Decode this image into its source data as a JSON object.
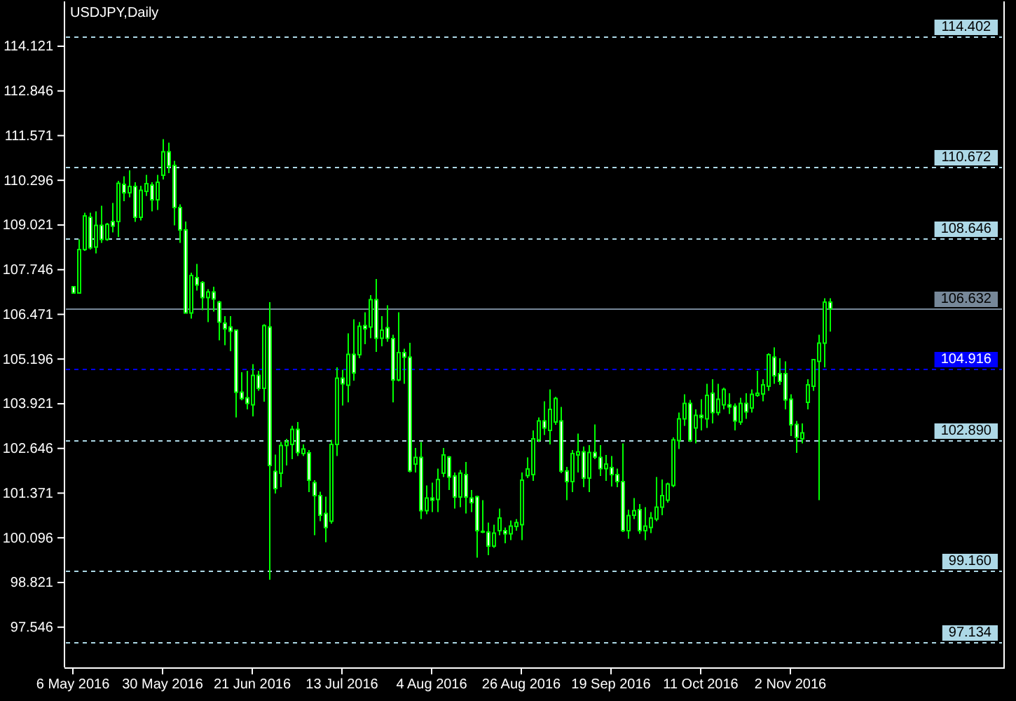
{
  "chart_data": {
    "type": "candlestick",
    "title": "USDJPY,Daily",
    "categories": [
      "6 May 2016",
      null,
      null,
      null,
      null,
      null,
      null,
      null,
      null,
      null,
      null,
      null,
      null,
      null,
      null,
      null,
      "30 May 2016",
      null,
      null,
      null,
      null,
      null,
      null,
      null,
      null,
      null,
      null,
      null,
      null,
      null,
      null,
      null,
      "21 Jun 2016",
      null,
      null,
      null,
      null,
      null,
      null,
      null,
      null,
      null,
      null,
      null,
      null,
      null,
      null,
      null,
      "13 Jul 2016",
      null,
      null,
      null,
      null,
      null,
      null,
      null,
      null,
      null,
      null,
      null,
      null,
      null,
      null,
      null,
      "4 Aug 2016",
      null,
      null,
      null,
      null,
      null,
      null,
      null,
      null,
      null,
      null,
      null,
      null,
      null,
      null,
      null,
      "26 Aug 2016",
      null,
      null,
      null,
      null,
      null,
      null,
      null,
      null,
      null,
      null,
      null,
      null,
      null,
      null,
      null,
      "19 Sep 2016",
      null,
      null,
      null,
      null,
      null,
      null,
      null,
      null,
      null,
      null,
      null,
      null,
      null,
      null,
      null,
      "11 Oct 2016",
      null,
      null,
      null,
      null,
      null,
      null,
      null,
      null,
      null,
      null,
      null,
      null,
      null,
      null,
      null,
      "2 Nov 2016",
      null,
      null,
      null,
      null,
      null,
      null,
      null
    ],
    "ohlc": [
      [
        107.26,
        107.26,
        107.08,
        107.08
      ],
      [
        107.08,
        108.61,
        107.08,
        108.32
      ],
      [
        108.32,
        109.37,
        108.28,
        109.28
      ],
      [
        109.24,
        109.37,
        108.32,
        108.37
      ],
      [
        108.39,
        109.41,
        108.21,
        109.01
      ],
      [
        109.01,
        109.57,
        108.51,
        108.61
      ],
      [
        108.61,
        109.08,
        108.57,
        109.04
      ],
      [
        109.12,
        109.65,
        108.81,
        108.99
      ],
      [
        109.12,
        110.28,
        108.68,
        110.21
      ],
      [
        110.18,
        110.41,
        109.7,
        109.94
      ],
      [
        109.94,
        110.58,
        109.81,
        110.12
      ],
      [
        110.12,
        110.24,
        109.11,
        109.24
      ],
      [
        109.24,
        110.14,
        109.15,
        110.01
      ],
      [
        109.98,
        110.45,
        109.85,
        110.2
      ],
      [
        110.16,
        110.24,
        109.41,
        109.74
      ],
      [
        109.74,
        110.45,
        109.45,
        110.24
      ],
      [
        110.44,
        111.47,
        110.32,
        111.11
      ],
      [
        111.11,
        111.37,
        110.5,
        110.7
      ],
      [
        110.72,
        110.85,
        109.01,
        109.52
      ],
      [
        109.52,
        109.61,
        108.51,
        108.88
      ],
      [
        108.88,
        109.12,
        106.51,
        106.51
      ],
      [
        106.51,
        107.66,
        106.35,
        107.58
      ],
      [
        107.52,
        107.91,
        107.15,
        107.31
      ],
      [
        107.38,
        107.42,
        106.59,
        106.95
      ],
      [
        106.95,
        107.19,
        106.25,
        107.11
      ],
      [
        107.11,
        107.26,
        106.55,
        106.91
      ],
      [
        106.82,
        106.86,
        105.73,
        106.25
      ],
      [
        106.22,
        106.42,
        105.59,
        106.06
      ],
      [
        106.11,
        106.42,
        105.42,
        105.99
      ],
      [
        106.02,
        106.02,
        103.53,
        104.25
      ],
      [
        104.25,
        104.82,
        104.02,
        104.07
      ],
      [
        104.09,
        104.86,
        103.76,
        103.93
      ],
      [
        103.89,
        105.05,
        103.56,
        104.73
      ],
      [
        104.73,
        104.86,
        104.29,
        104.36
      ],
      [
        104.36,
        106.19,
        103.98,
        106.15
      ],
      [
        106.11,
        106.82,
        98.9,
        102.16
      ],
      [
        101.99,
        102.47,
        101.36,
        101.5
      ],
      [
        101.94,
        102.83,
        101.54,
        102.73
      ],
      [
        102.73,
        102.92,
        102.16,
        102.83
      ],
      [
        102.76,
        103.29,
        102.34,
        103.19
      ],
      [
        103.19,
        103.4,
        102.43,
        102.53
      ],
      [
        102.5,
        102.76,
        102.43,
        102.63
      ],
      [
        102.52,
        102.6,
        101.4,
        101.74
      ],
      [
        101.67,
        101.74,
        100.17,
        101.3
      ],
      [
        101.3,
        101.41,
        100.57,
        100.74
      ],
      [
        100.79,
        101.27,
        99.97,
        100.39
      ],
      [
        100.57,
        102.89,
        100.5,
        102.76
      ],
      [
        102.76,
        104.96,
        102.43,
        104.65
      ],
      [
        104.65,
        104.89,
        103.87,
        104.49
      ],
      [
        104.45,
        105.93,
        103.96,
        105.33
      ],
      [
        105.33,
        106.33,
        104.58,
        104.8
      ],
      [
        105.32,
        106.25,
        105.22,
        106.13
      ],
      [
        106.15,
        106.53,
        105.62,
        106.06
      ],
      [
        106.11,
        107.02,
        105.79,
        106.89
      ],
      [
        106.89,
        107.48,
        105.4,
        105.79
      ],
      [
        105.79,
        106.42,
        105.56,
        106.02
      ],
      [
        106.09,
        106.73,
        105.69,
        105.79
      ],
      [
        105.78,
        105.89,
        103.96,
        104.6
      ],
      [
        104.6,
        106.53,
        104.56,
        105.38
      ],
      [
        105.38,
        105.49,
        104.49,
        105.25
      ],
      [
        105.25,
        105.66,
        101.96,
        102.0
      ],
      [
        102.2,
        102.66,
        101.96,
        102.39
      ],
      [
        102.39,
        102.83,
        100.63,
        100.87
      ],
      [
        100.87,
        101.59,
        100.77,
        101.23
      ],
      [
        101.23,
        101.67,
        100.83,
        101.17
      ],
      [
        101.19,
        102.07,
        100.83,
        101.76
      ],
      [
        101.94,
        102.66,
        101.83,
        102.46
      ],
      [
        102.4,
        102.43,
        101.46,
        101.83
      ],
      [
        101.86,
        101.96,
        100.93,
        101.26
      ],
      [
        101.26,
        102.03,
        100.97,
        101.94
      ],
      [
        101.9,
        102.26,
        100.79,
        101.26
      ],
      [
        101.23,
        101.46,
        100.83,
        101.1
      ],
      [
        101.27,
        101.3,
        99.53,
        100.3
      ],
      [
        100.28,
        101.17,
        100.23,
        100.26
      ],
      [
        100.26,
        100.53,
        99.6,
        99.86
      ],
      [
        99.86,
        100.47,
        99.81,
        100.23
      ],
      [
        100.3,
        100.93,
        100.17,
        100.66
      ],
      [
        100.3,
        100.39,
        99.94,
        100.21
      ],
      [
        100.21,
        100.59,
        100.03,
        100.43
      ],
      [
        100.42,
        100.63,
        100.3,
        100.53
      ],
      [
        100.47,
        101.96,
        100.03,
        101.74
      ],
      [
        101.87,
        102.39,
        101.8,
        102.06
      ],
      [
        101.9,
        103.16,
        101.72,
        102.92
      ],
      [
        102.89,
        103.53,
        102.83,
        103.43
      ],
      [
        103.43,
        103.99,
        103.03,
        103.23
      ],
      [
        103.16,
        104.33,
        102.76,
        103.76
      ],
      [
        103.4,
        104.12,
        103.32,
        104.07
      ],
      [
        103.43,
        103.83,
        101.94,
        102.0
      ],
      [
        102.0,
        102.12,
        101.17,
        101.7
      ],
      [
        101.7,
        102.6,
        101.4,
        102.5
      ],
      [
        102.46,
        103.07,
        101.96,
        102.55
      ],
      [
        102.55,
        102.7,
        101.54,
        101.8
      ],
      [
        101.8,
        102.74,
        101.4,
        102.53
      ],
      [
        102.53,
        103.33,
        102.34,
        102.4
      ],
      [
        102.39,
        102.74,
        101.86,
        102.07
      ],
      [
        102.07,
        102.46,
        101.72,
        102.2
      ],
      [
        102.1,
        102.43,
        101.56,
        101.9
      ],
      [
        101.9,
        102.07,
        101.54,
        101.7
      ],
      [
        101.7,
        102.79,
        100.26,
        100.3
      ],
      [
        100.3,
        100.9,
        100.07,
        100.73
      ],
      [
        100.74,
        101.23,
        100.63,
        100.87
      ],
      [
        100.9,
        101.06,
        100.21,
        100.3
      ],
      [
        100.3,
        100.97,
        100.03,
        100.43
      ],
      [
        100.39,
        100.83,
        100.23,
        100.66
      ],
      [
        100.63,
        101.83,
        100.57,
        100.97
      ],
      [
        100.97,
        101.76,
        100.74,
        101.3
      ],
      [
        101.17,
        101.67,
        101.1,
        101.63
      ],
      [
        101.59,
        102.96,
        101.54,
        102.89
      ],
      [
        102.87,
        103.67,
        102.63,
        103.49
      ],
      [
        103.49,
        104.19,
        103.29,
        103.93
      ],
      [
        103.93,
        104.03,
        102.83,
        102.87
      ],
      [
        103.23,
        103.76,
        102.79,
        103.59
      ],
      [
        103.59,
        104.05,
        103.16,
        103.53
      ],
      [
        103.49,
        104.49,
        103.23,
        104.16
      ],
      [
        104.22,
        104.62,
        103.36,
        103.67
      ],
      [
        103.67,
        104.49,
        103.59,
        104.05
      ],
      [
        103.89,
        104.38,
        103.76,
        104.33
      ],
      [
        103.89,
        104.22,
        103.63,
        103.83
      ],
      [
        103.85,
        103.93,
        103.16,
        103.43
      ],
      [
        103.4,
        104.09,
        103.32,
        103.93
      ],
      [
        103.93,
        104.22,
        103.49,
        103.69
      ],
      [
        103.8,
        104.33,
        103.67,
        104.19
      ],
      [
        104.16,
        104.86,
        104.12,
        104.22
      ],
      [
        104.2,
        104.62,
        103.99,
        104.46
      ],
      [
        104.42,
        105.36,
        104.29,
        105.32
      ],
      [
        105.25,
        105.53,
        104.49,
        104.72
      ],
      [
        104.78,
        105.22,
        104.46,
        104.56
      ],
      [
        104.78,
        105.13,
        103.76,
        104.03
      ],
      [
        104.05,
        104.19,
        103.0,
        103.32
      ],
      [
        103.33,
        103.43,
        102.52,
        102.96
      ],
      [
        102.92,
        103.36,
        102.79,
        103.09
      ],
      [
        103.96,
        104.62,
        103.76,
        104.46
      ],
      [
        104.42,
        105.18,
        104.29,
        105.18
      ],
      [
        105.13,
        105.89,
        101.17,
        105.65
      ],
      [
        105.65,
        106.93,
        104.96,
        106.82
      ],
      [
        106.82,
        106.93,
        105.98,
        106.63
      ]
    ],
    "color": "#00ff00",
    "colors": [
      "#ffffff",
      "#000000",
      "#000000",
      "#ffffff",
      "#000000",
      "#ffffff",
      "#000000",
      "#ffffff",
      "#000000",
      "#ffffff",
      "#000000",
      "#ffffff",
      "#000000",
      "#000000",
      "#ffffff",
      "#000000",
      "#000000",
      "#ffffff",
      "#ffffff",
      "#ffffff",
      "#ffffff",
      "#000000",
      "#ffffff",
      "#ffffff",
      "#000000",
      "#ffffff",
      "#ffffff",
      "#ffffff",
      "#ffffff",
      "#ffffff",
      "#ffffff",
      "#ffffff",
      "#000000",
      "#ffffff",
      "#000000",
      "#ffffff",
      "#ffffff",
      "#000000",
      "#000000",
      "#000000",
      "#ffffff",
      "#000000",
      "#ffffff",
      "#ffffff",
      "#ffffff",
      "#ffffff",
      "#000000",
      "#000000",
      "#ffffff",
      "#000000",
      "#ffffff",
      "#000000",
      "#ffffff",
      "#000000",
      "#ffffff",
      "#000000",
      "#ffffff",
      "#ffffff",
      "#000000",
      "#ffffff",
      "#ffffff",
      "#000000",
      "#ffffff",
      "#000000",
      "#ffffff",
      "#000000",
      "#000000",
      "#ffffff",
      "#ffffff",
      "#000000",
      "#ffffff",
      "#ffffff",
      "#ffffff",
      "#ffffff",
      "#ffffff",
      "#000000",
      "#000000",
      "#ffffff",
      "#000000",
      "#000000",
      "#000000",
      "#000000",
      "#000000",
      "#000000",
      "#ffffff",
      "#000000",
      "#000000",
      "#ffffff",
      "#ffffff",
      "#000000",
      "#000000",
      "#ffffff",
      "#000000",
      "#ffffff",
      "#ffffff",
      "#000000",
      "#ffffff",
      "#ffffff",
      "#ffffff",
      "#000000",
      "#000000",
      "#ffffff",
      "#000000",
      "#000000",
      "#000000",
      "#000000",
      "#000000",
      "#000000",
      "#000000",
      "#000000",
      "#ffffff",
      "#000000",
      "#ffffff",
      "#000000",
      "#ffffff",
      "#000000",
      "#000000",
      "#ffffff",
      "#ffffff",
      "#000000",
      "#ffffff",
      "#000000",
      "#000000",
      "#000000",
      "#000000",
      "#ffffff",
      "#ffffff",
      "#ffffff",
      "#ffffff",
      "#ffffff",
      "#000000",
      "#000000",
      "#000000",
      "#000000",
      "#000000",
      "#ffffff"
    ],
    "ylim": [
      96.4,
      115.4
    ],
    "yticks": [
      {
        "value": 114.121,
        "label": "114.121"
      },
      {
        "value": 112.846,
        "label": "112.846"
      },
      {
        "value": 111.571,
        "label": "111.571"
      },
      {
        "value": 110.296,
        "label": "110.296"
      },
      {
        "value": 109.021,
        "label": "109.021"
      },
      {
        "value": 107.746,
        "label": "107.746"
      },
      {
        "value": 106.471,
        "label": "106.471"
      },
      {
        "value": 105.196,
        "label": "105.196"
      },
      {
        "value": 103.921,
        "label": "103.921"
      },
      {
        "value": 102.646,
        "label": "102.646"
      },
      {
        "value": 101.371,
        "label": "101.371"
      },
      {
        "value": 100.096,
        "label": "100.096"
      },
      {
        "value": 98.821,
        "label": "98.821"
      },
      {
        "value": 97.546,
        "label": "97.546"
      }
    ],
    "ref_lines": [
      {
        "axis": "y",
        "value": 114.402,
        "label": "114.402",
        "color": "#add8e6",
        "line_style": "dashed"
      },
      {
        "axis": "y",
        "value": 110.672,
        "label": "110.672",
        "color": "#add8e6",
        "line_style": "dashed"
      },
      {
        "axis": "y",
        "value": 108.646,
        "label": "108.646",
        "color": "#add8e6",
        "line_style": "dashed"
      },
      {
        "axis": "y",
        "value": 106.632,
        "label": "106.632",
        "color": "#778899",
        "line_style": "solid"
      },
      {
        "axis": "y",
        "value": 104.916,
        "label": "104.916",
        "color": "#0000ff",
        "line_style": "dashed"
      },
      {
        "axis": "y",
        "value": 102.89,
        "label": "102.890",
        "color": "#add8e6",
        "line_style": "dashed"
      },
      {
        "axis": "y",
        "value": 99.16,
        "label": "99.160",
        "color": "#add8e6",
        "line_style": "dashed"
      },
      {
        "axis": "y",
        "value": 97.134,
        "label": "97.134",
        "color": "#add8e6",
        "line_style": "dashed"
      }
    ]
  }
}
